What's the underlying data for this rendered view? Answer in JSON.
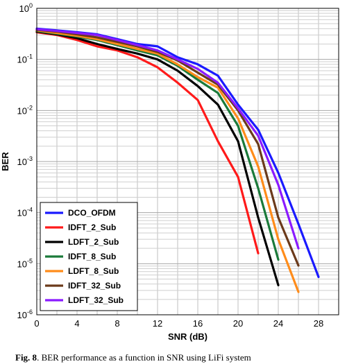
{
  "chart_data": {
    "type": "line",
    "title": "",
    "xlabel": "SNR (dB)",
    "ylabel": "BER",
    "xlim": [
      0,
      30
    ],
    "ylim": [
      1e-06,
      1
    ],
    "yscale": "log",
    "grid": true,
    "legend_position": "bottom-left",
    "xticks": [
      "0",
      "4",
      "8",
      "12",
      "16",
      "20",
      "24",
      "28"
    ],
    "yticks": [
      "10^0",
      "10^-1",
      "10^-2",
      "10^-3",
      "10^-4",
      "10^-5",
      "10^-6"
    ],
    "series": [
      {
        "name": "DCO_OFDM",
        "color": "#1a1aff",
        "x": [
          0,
          2,
          4,
          6,
          8,
          10,
          12,
          14,
          16,
          18,
          20,
          22,
          24,
          26,
          28
        ],
        "y": [
          0.4,
          0.37,
          0.34,
          0.31,
          0.25,
          0.2,
          0.18,
          0.11,
          0.08,
          0.048,
          0.013,
          0.0042,
          0.0006,
          6e-05,
          5.5e-06
        ]
      },
      {
        "name": "IDFT_2_Sub",
        "color": "#ff1a1a",
        "x": [
          0,
          2,
          4,
          6,
          8,
          10,
          12,
          14,
          16,
          18,
          20,
          22
        ],
        "y": [
          0.34,
          0.3,
          0.24,
          0.18,
          0.15,
          0.11,
          0.07,
          0.035,
          0.016,
          0.0025,
          0.0005,
          1.6e-05
        ]
      },
      {
        "name": "LDFT_2_Sub",
        "color": "#000000",
        "x": [
          0,
          2,
          4,
          6,
          8,
          10,
          12,
          14,
          16,
          18,
          20,
          22,
          24
        ],
        "y": [
          0.35,
          0.31,
          0.26,
          0.2,
          0.16,
          0.13,
          0.1,
          0.06,
          0.03,
          0.013,
          0.0025,
          8e-05,
          3.8e-06
        ]
      },
      {
        "name": "IDFT_8_Sub",
        "color": "#1a7a3a",
        "x": [
          0,
          2,
          4,
          6,
          8,
          10,
          12,
          14,
          16,
          18,
          20,
          22,
          24
        ],
        "y": [
          0.36,
          0.32,
          0.28,
          0.24,
          0.19,
          0.15,
          0.12,
          0.075,
          0.04,
          0.022,
          0.005,
          0.0003,
          1.2e-05
        ]
      },
      {
        "name": "LDFT_8_Sub",
        "color": "#ff8c1a",
        "x": [
          0,
          2,
          4,
          6,
          8,
          10,
          12,
          14,
          16,
          18,
          20,
          22,
          24,
          26
        ],
        "y": [
          0.37,
          0.33,
          0.29,
          0.25,
          0.2,
          0.16,
          0.13,
          0.08,
          0.045,
          0.028,
          0.007,
          0.0008,
          3e-05,
          2.8e-06
        ]
      },
      {
        "name": "IDFT_32_Sub",
        "color": "#6b3a1a",
        "x": [
          0,
          2,
          4,
          6,
          8,
          10,
          12,
          14,
          16,
          18,
          20,
          22,
          24,
          26
        ],
        "y": [
          0.38,
          0.35,
          0.31,
          0.27,
          0.22,
          0.18,
          0.14,
          0.095,
          0.055,
          0.032,
          0.01,
          0.0022,
          8e-05,
          9.2e-06
        ]
      },
      {
        "name": "LDFT_32_Sub",
        "color": "#8a1aff",
        "x": [
          0,
          2,
          4,
          6,
          8,
          10,
          12,
          14,
          16,
          18,
          20,
          22,
          24,
          26
        ],
        "y": [
          0.39,
          0.36,
          0.33,
          0.3,
          0.24,
          0.19,
          0.15,
          0.1,
          0.065,
          0.035,
          0.011,
          0.0032,
          0.00035,
          2e-05
        ]
      }
    ]
  },
  "caption": {
    "prefix": "Fig. 8",
    "text": ". BER performance as a function in SNR using LiFi system"
  }
}
